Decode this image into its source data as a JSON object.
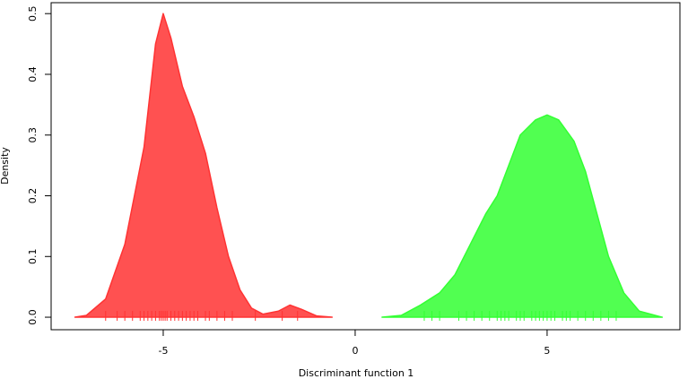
{
  "chart_data": {
    "type": "density",
    "x_label": "Discriminant function 1",
    "y_label": "Density",
    "xlim": [
      -7.92,
      8.46
    ],
    "ylim": [
      -0.0206,
      0.518
    ],
    "xticks": [
      -5,
      0,
      5
    ],
    "yticks": [
      {
        "value": 0,
        "label": "0.0"
      },
      0.1,
      0.2,
      0.3,
      0.4,
      0.5
    ],
    "series": [
      {
        "color": "#ff3333",
        "x": [
          -7.3,
          -7,
          -6.5,
          -6,
          -5.5,
          -5.2,
          -5,
          -4.8,
          -4.5,
          -4.2,
          -3.9,
          -3.6,
          -3.3,
          -3,
          -2.7,
          -2.4,
          -2,
          -1.7,
          -1.4,
          -1,
          -0.6
        ],
        "values": [
          0,
          0.003,
          0.03,
          0.12,
          0.28,
          0.45,
          0.5,
          0.46,
          0.38,
          0.33,
          0.27,
          0.18,
          0.1,
          0.045,
          0.015,
          0.005,
          0.01,
          0.02,
          0.013,
          0.002,
          0
        ],
        "rug": [
          -6.5,
          -6.2,
          -6.0,
          -5.8,
          -5.6,
          -5.5,
          -5.4,
          -5.3,
          -5.2,
          -5.1,
          -5.05,
          -5.0,
          -4.95,
          -4.9,
          -4.8,
          -4.7,
          -4.6,
          -4.5,
          -4.4,
          -4.3,
          -4.2,
          -4.1,
          -3.9,
          -3.8,
          -3.6,
          -3.4,
          -3.2,
          -2.6,
          -1.9,
          -1.5
        ]
      },
      {
        "color": "#33ff33",
        "x": [
          0.7,
          1.2,
          1.7,
          2.2,
          2.6,
          3,
          3.4,
          3.7,
          4,
          4.3,
          4.7,
          5,
          5.3,
          5.7,
          6,
          6.3,
          6.6,
          7,
          7.4,
          8
        ],
        "values": [
          0,
          0.003,
          0.02,
          0.04,
          0.07,
          0.12,
          0.17,
          0.2,
          0.25,
          0.3,
          0.325,
          0.333,
          0.325,
          0.29,
          0.24,
          0.17,
          0.1,
          0.04,
          0.01,
          0
        ],
        "rug": [
          1.8,
          2.0,
          2.2,
          2.7,
          2.9,
          3.1,
          3.3,
          3.5,
          3.7,
          3.8,
          3.9,
          4.0,
          4.2,
          4.3,
          4.4,
          4.6,
          4.7,
          4.8,
          4.9,
          5.0,
          5.1,
          5.2,
          5.4,
          5.5,
          5.6,
          5.8,
          6.0,
          6.2,
          6.4,
          6.6,
          6.8
        ]
      }
    ]
  }
}
